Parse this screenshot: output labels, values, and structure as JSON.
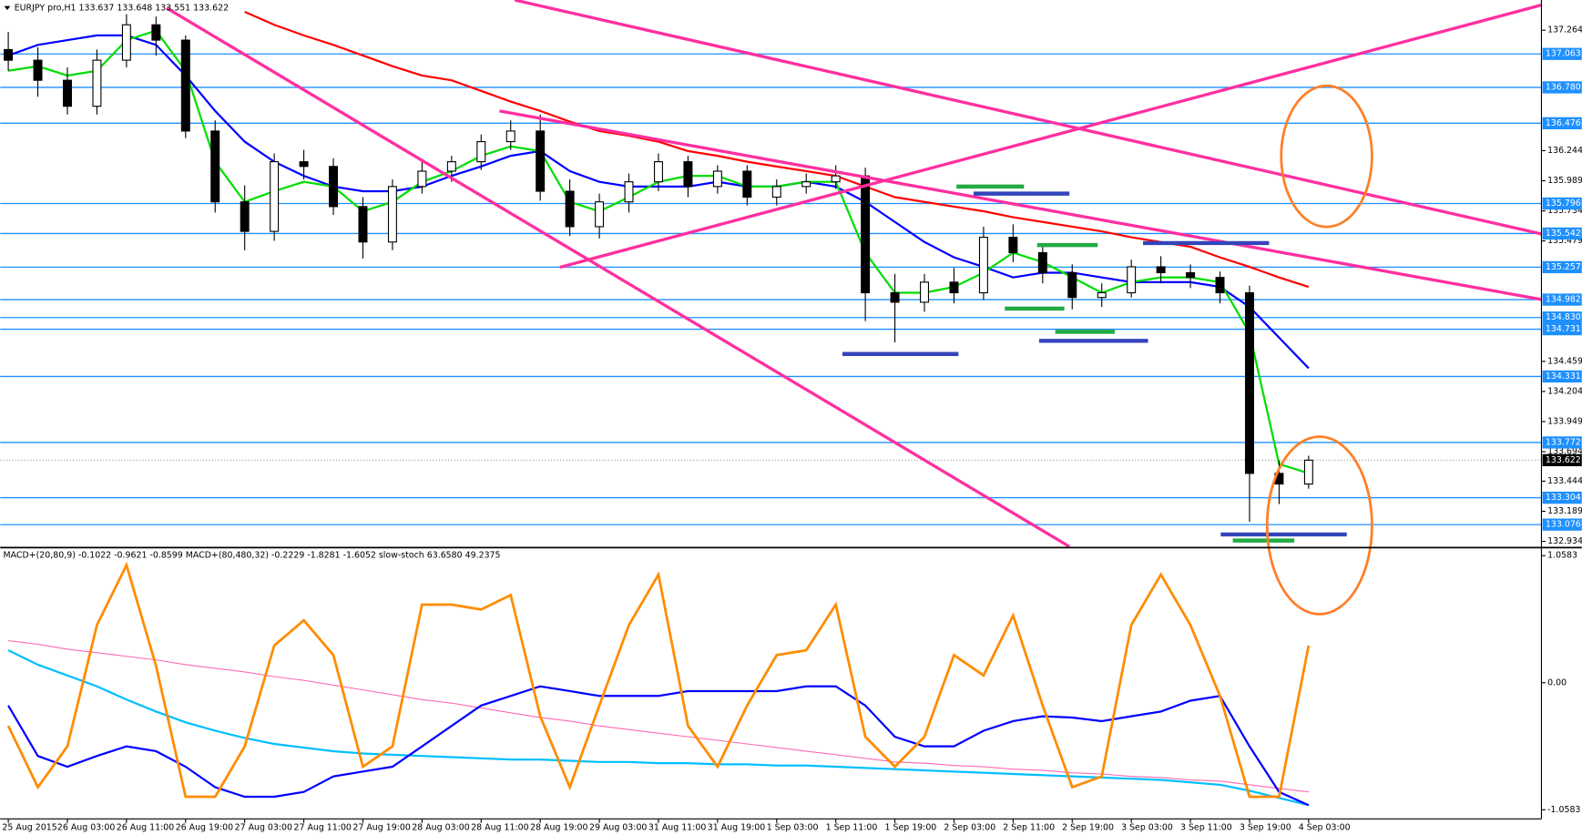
{
  "chart_data": [
    {
      "type": "candlestick",
      "title": "EURJPY pro,H1 133.637 133.648 133.551 133.622",
      "categories": [
        "25 Aug 2015",
        null,
        "26 Aug 03:00",
        null,
        "26 Aug 11:00",
        null,
        "26 Aug 19:00",
        null,
        "27 Aug 03:00",
        null,
        "27 Aug 11:00",
        null,
        "27 Aug 19:00",
        null,
        "28 Aug 03:00",
        null,
        "28 Aug 11:00",
        null,
        "28 Aug 19:00",
        null,
        "29 Aug 03:00",
        null,
        "31 Aug 11:00",
        null,
        "31 Aug 19:00",
        null,
        "1 Sep 03:00",
        null,
        "1 Sep 11:00",
        null,
        "1 Sep 19:00",
        null,
        "2 Sep 03:00",
        null,
        "2 Sep 11:00",
        null,
        "2 Sep 19:00",
        null,
        "3 Sep 03:00",
        null,
        "3 Sep 11:00",
        null,
        "3 Sep 19:00",
        null,
        "4 Sep 03:00"
      ],
      "open": [
        137.1,
        137.01,
        136.84,
        136.62,
        137.01,
        137.31,
        137.18,
        136.41,
        135.81,
        135.56,
        136.15,
        136.11,
        135.77,
        135.47,
        135.94,
        136.07,
        136.15,
        136.32,
        136.41,
        135.9,
        135.6,
        135.81,
        135.98,
        136.15,
        135.94,
        136.07,
        135.85,
        135.94,
        135.98,
        136.03,
        135.04,
        134.96,
        135.13,
        135.04,
        135.51,
        135.38,
        135.21,
        135.0,
        135.04,
        135.26,
        135.21,
        135.17,
        135.04,
        133.51,
        133.42
      ],
      "high": [
        137.25,
        137.12,
        136.95,
        137.1,
        137.4,
        137.38,
        137.22,
        136.5,
        135.95,
        136.22,
        136.25,
        136.18,
        135.85,
        136.0,
        136.15,
        136.2,
        136.38,
        136.5,
        136.55,
        136.0,
        135.88,
        136.05,
        136.22,
        136.2,
        136.12,
        136.12,
        136.0,
        136.05,
        136.12,
        136.1,
        135.2,
        135.2,
        135.25,
        135.6,
        135.62,
        135.45,
        135.28,
        135.12,
        135.32,
        135.35,
        135.28,
        135.22,
        135.1,
        133.62,
        133.66
      ],
      "low": [
        136.92,
        136.7,
        136.55,
        136.55,
        136.95,
        137.05,
        136.35,
        135.72,
        135.4,
        135.48,
        136.0,
        135.7,
        135.33,
        135.4,
        135.88,
        135.98,
        136.08,
        136.25,
        135.82,
        135.52,
        135.5,
        135.72,
        135.9,
        135.85,
        135.88,
        135.78,
        135.78,
        135.88,
        135.92,
        134.8,
        134.62,
        134.88,
        134.95,
        134.98,
        135.3,
        135.12,
        134.9,
        134.92,
        135.0,
        135.12,
        135.08,
        134.95,
        133.1,
        133.25,
        133.38
      ],
      "close": [
        137.01,
        136.84,
        136.62,
        137.01,
        137.31,
        137.18,
        136.41,
        135.81,
        135.56,
        136.15,
        136.11,
        135.77,
        135.47,
        135.94,
        136.07,
        136.15,
        136.32,
        136.41,
        135.9,
        135.6,
        135.81,
        135.98,
        136.15,
        135.94,
        136.07,
        135.85,
        135.94,
        135.98,
        136.03,
        135.04,
        134.96,
        135.13,
        135.04,
        135.51,
        135.38,
        135.21,
        135.0,
        135.04,
        135.26,
        135.21,
        135.17,
        135.04,
        133.51,
        133.42,
        133.622
      ],
      "up_color": "#ffffff",
      "down_color": "#000000",
      "series": [
        {
          "color": "#ff0000",
          "values": [
            null,
            null,
            null,
            null,
            null,
            null,
            null,
            null,
            137.42,
            137.31,
            137.22,
            137.14,
            137.05,
            136.96,
            136.88,
            136.84,
            136.75,
            136.66,
            136.58,
            136.49,
            136.41,
            136.37,
            136.32,
            136.24,
            136.2,
            136.15,
            136.11,
            136.07,
            136.03,
            135.94,
            135.85,
            135.81,
            135.77,
            135.73,
            135.68,
            135.64,
            135.6,
            135.56,
            135.51,
            135.47,
            135.43,
            135.34,
            135.26,
            135.17,
            135.09
          ]
        },
        {
          "color": "#0000ff",
          "values": [
            137.05,
            137.14,
            137.18,
            137.22,
            137.22,
            137.14,
            136.88,
            136.58,
            136.32,
            136.15,
            136.03,
            135.94,
            135.9,
            135.9,
            135.94,
            136.03,
            136.11,
            136.2,
            136.24,
            136.07,
            135.98,
            135.94,
            135.94,
            135.94,
            135.98,
            135.94,
            135.94,
            135.98,
            135.94,
            135.81,
            135.64,
            135.47,
            135.34,
            135.26,
            135.17,
            135.21,
            135.21,
            135.17,
            135.13,
            135.13,
            135.13,
            135.09,
            134.92,
            134.66,
            134.4
          ]
        },
        {
          "color": "#00dd00",
          "values": [
            136.92,
            136.96,
            136.88,
            136.92,
            137.18,
            137.26,
            136.92,
            136.15,
            135.81,
            135.9,
            135.98,
            135.94,
            135.73,
            135.81,
            135.98,
            136.07,
            136.2,
            136.28,
            136.24,
            135.81,
            135.73,
            135.85,
            135.98,
            136.03,
            136.03,
            135.94,
            135.94,
            135.98,
            135.98,
            135.38,
            135.04,
            135.04,
            135.09,
            135.21,
            135.38,
            135.3,
            135.17,
            135.04,
            135.13,
            135.17,
            135.17,
            135.13,
            134.7,
            133.59,
            133.51
          ]
        }
      ],
      "levels": [
        137.063,
        {
          "value": 136.78,
          "label": "136.780"
        },
        136.476,
        135.796,
        135.542,
        135.257,
        134.982,
        {
          "value": 134.83,
          "label": "134.830"
        },
        134.731,
        134.331,
        133.772,
        133.304,
        133.076
      ],
      "levels_color": "#1e90ff",
      "last_price": 133.622,
      "ylim": [
        132.89,
        137.52
      ],
      "yticks": [
        137.264,
        136.244,
        135.989,
        135.734,
        135.479,
        134.459,
        134.204,
        133.949,
        133.694,
        133.444,
        133.189,
        132.934
      ]
    },
    {
      "type": "line",
      "title": "MACD+(20,80,9) -0.1022 -0.9621 -0.8599  MACD+(80,480,32) -0.2229 -1.8281 -1.6052  slow-stoch 63.6580 49.2375",
      "series": [
        {
          "color": "#ff69b4",
          "width": 1,
          "values": [
            0.35,
            0.32,
            0.28,
            0.25,
            0.22,
            0.19,
            0.15,
            0.12,
            0.09,
            0.05,
            0.02,
            -0.02,
            -0.06,
            -0.1,
            -0.14,
            -0.17,
            -0.21,
            -0.25,
            -0.29,
            -0.32,
            -0.36,
            -0.39,
            -0.42,
            -0.45,
            -0.48,
            -0.51,
            -0.54,
            -0.57,
            -0.6,
            -0.63,
            -0.66,
            -0.67,
            -0.69,
            -0.7,
            -0.72,
            -0.73,
            -0.75,
            -0.76,
            -0.78,
            -0.79,
            -0.81,
            -0.82,
            -0.85,
            -0.88,
            -0.91
          ]
        },
        {
          "color": "#00bfff",
          "width": 2,
          "values": [
            0.27,
            0.15,
            0.06,
            -0.03,
            -0.14,
            -0.24,
            -0.33,
            -0.4,
            -0.46,
            -0.51,
            -0.54,
            -0.57,
            -0.59,
            -0.6,
            -0.61,
            -0.62,
            -0.63,
            -0.64,
            -0.64,
            -0.65,
            -0.66,
            -0.66,
            -0.67,
            -0.67,
            -0.68,
            -0.68,
            -0.69,
            -0.69,
            -0.7,
            -0.71,
            -0.72,
            -0.73,
            -0.74,
            -0.75,
            -0.76,
            -0.77,
            -0.78,
            -0.79,
            -0.8,
            -0.81,
            -0.83,
            -0.85,
            -0.9,
            -0.96,
            -1.02
          ]
        },
        {
          "color": "#0000ff",
          "width": 2,
          "values": [
            -0.19,
            -0.61,
            -0.7,
            -0.61,
            -0.53,
            -0.57,
            -0.7,
            -0.87,
            -0.95,
            -0.95,
            -0.91,
            -0.78,
            -0.74,
            -0.7,
            -0.53,
            -0.36,
            -0.19,
            -0.11,
            -0.03,
            -0.07,
            -0.11,
            -0.11,
            -0.11,
            -0.07,
            -0.07,
            -0.07,
            -0.07,
            -0.03,
            -0.03,
            -0.19,
            -0.45,
            -0.53,
            -0.53,
            -0.4,
            -0.32,
            -0.28,
            -0.29,
            -0.32,
            -0.28,
            -0.24,
            -0.15,
            -0.11,
            -0.53,
            -0.91,
            -1.02
          ]
        },
        {
          "color": "#ff8c00",
          "width": 2.5,
          "values": [
            -0.36,
            -0.87,
            -0.53,
            0.48,
            0.98,
            0.14,
            -0.95,
            -0.95,
            -0.53,
            0.31,
            0.52,
            0.23,
            -0.7,
            -0.53,
            0.65,
            0.65,
            0.61,
            0.73,
            -0.28,
            -0.87,
            -0.19,
            0.48,
            0.9,
            -0.36,
            -0.7,
            -0.19,
            0.23,
            0.27,
            0.65,
            -0.45,
            -0.7,
            -0.45,
            0.23,
            0.06,
            0.56,
            -0.19,
            -0.87,
            -0.78,
            0.48,
            0.9,
            0.48,
            -0.11,
            -0.95,
            -0.95,
            0.31
          ]
        }
      ],
      "ylim": [
        -1.134,
        1.117
      ],
      "yticks": [
        1.0583,
        {
          "value": 0,
          "label": "0.00"
        },
        -1.0583
      ]
    }
  ]
}
